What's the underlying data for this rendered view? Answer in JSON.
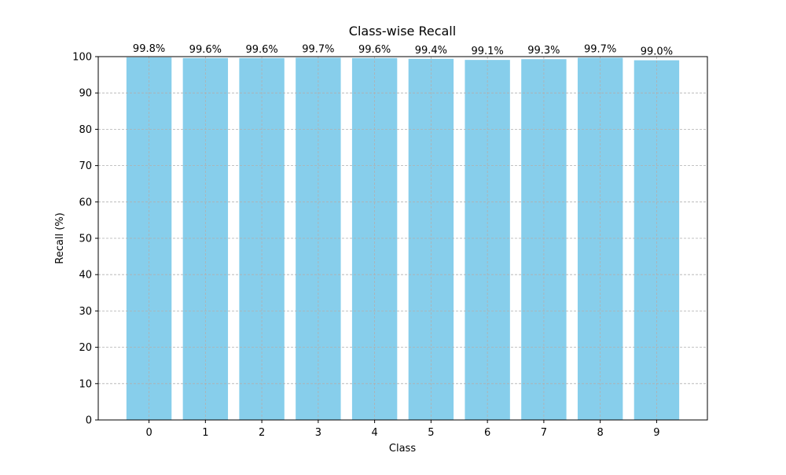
{
  "chart_data": {
    "type": "bar",
    "title": "Class-wise Recall",
    "xlabel": "Class",
    "ylabel": "Recall (%)",
    "categories": [
      "0",
      "1",
      "2",
      "3",
      "4",
      "5",
      "6",
      "7",
      "8",
      "9"
    ],
    "values": [
      99.8,
      99.6,
      99.6,
      99.7,
      99.6,
      99.4,
      99.1,
      99.3,
      99.7,
      99.0
    ],
    "data_labels": [
      "99.8%",
      "99.6%",
      "99.6%",
      "99.7%",
      "99.6%",
      "99.4%",
      "99.1%",
      "99.3%",
      "99.7%",
      "99.0%"
    ],
    "ylim": [
      0,
      100
    ],
    "yticks": [
      0,
      10,
      20,
      30,
      40,
      50,
      60,
      70,
      80,
      90,
      100
    ],
    "grid": true,
    "bar_color": "#87ceeb",
    "grid_color": "#b0b0b0"
  }
}
